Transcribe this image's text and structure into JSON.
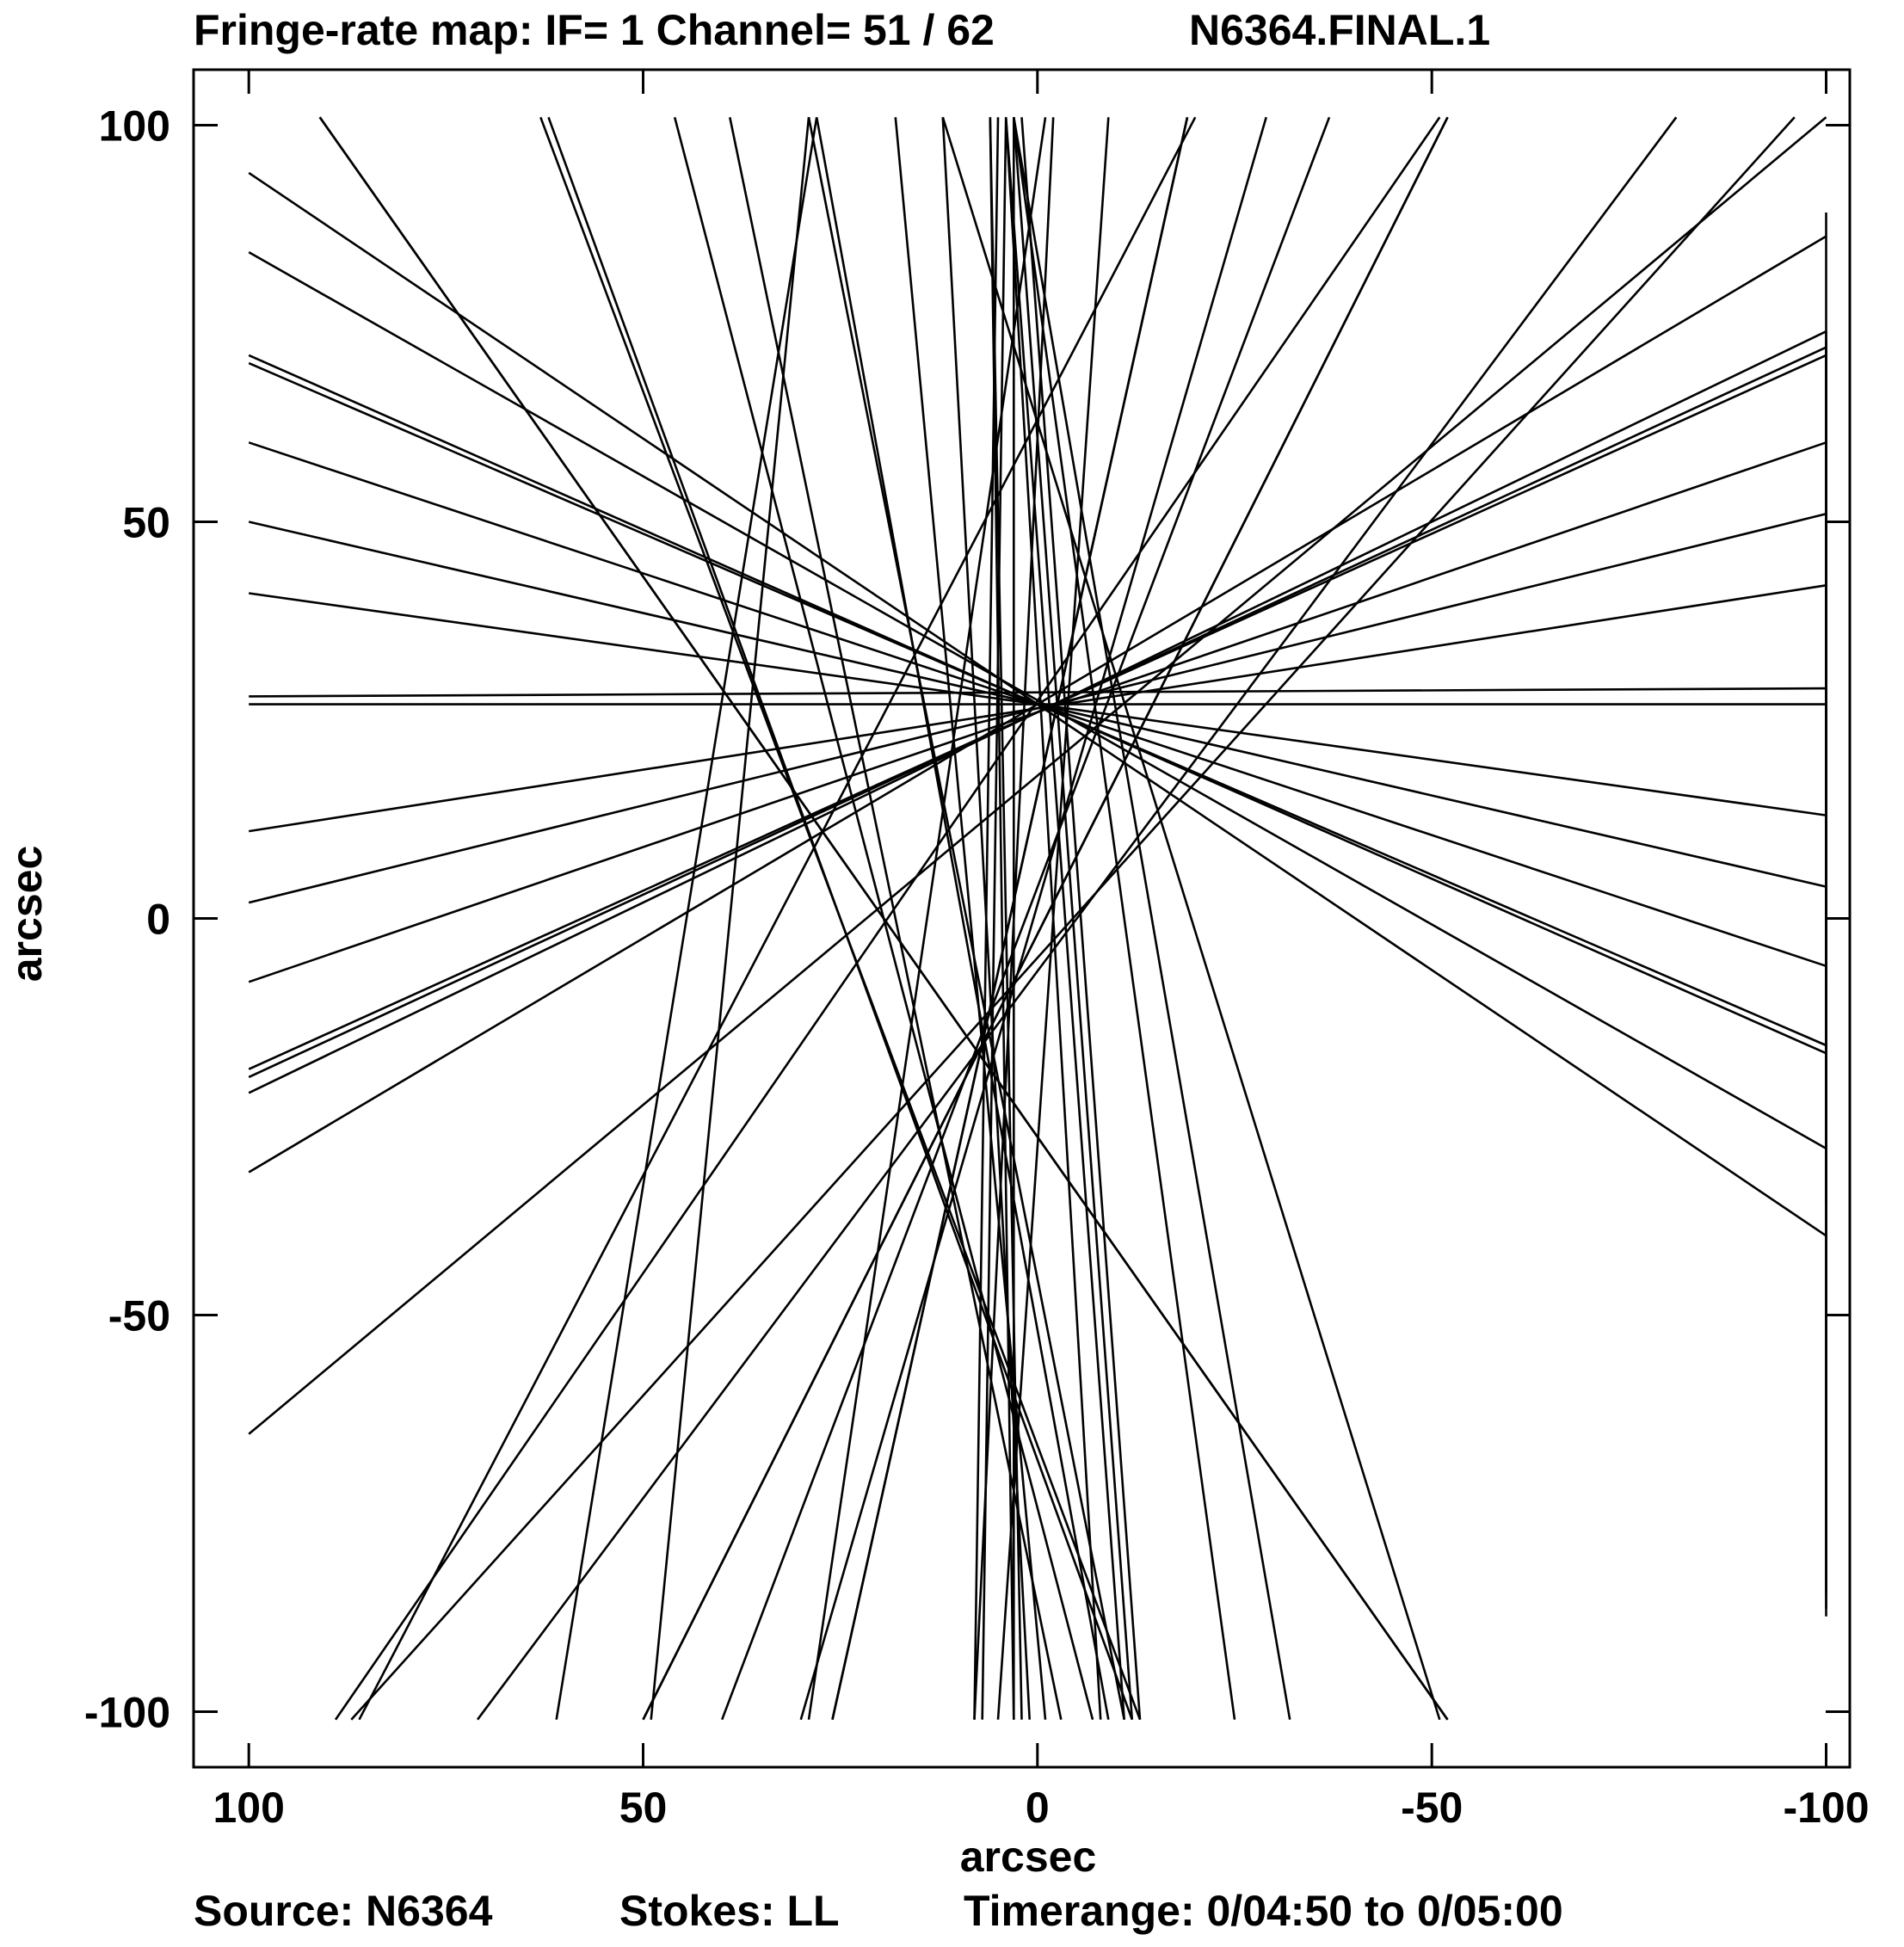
{
  "header": {
    "title": "Fringe-rate map:  IF= 1   Channel= 51 / 62",
    "image_name": "N6364.FINAL.1"
  },
  "footer": {
    "source": "Source:  N6364",
    "stokes": "Stokes:  LL",
    "timerange": "Timerange:  0/04:50  to  0/05:00"
  },
  "chart_data": {
    "type": "line",
    "xlabel": "arcsec",
    "ylabel": "arcsec",
    "xlim": [
      107,
      -103
    ],
    "ylim": [
      -107,
      107
    ],
    "x_reversed": true,
    "grid": false,
    "xticks": [
      {
        "value": 100,
        "label": "100"
      },
      {
        "value": 50,
        "label": "50"
      },
      {
        "value": 0,
        "label": "0"
      },
      {
        "value": -50,
        "label": "-50"
      },
      {
        "value": -100,
        "label": "-100"
      }
    ],
    "yticks": [
      {
        "value": 100,
        "label": "100"
      },
      {
        "value": 50,
        "label": "50"
      },
      {
        "value": 0,
        "label": "0"
      },
      {
        "value": -50,
        "label": "-50"
      },
      {
        "value": -100,
        "label": "-100"
      }
    ],
    "center": [
      0,
      27
    ],
    "lines": [
      [
        [
          100,
          94
        ],
        [
          -100,
          -40
        ]
      ],
      [
        [
          100,
          84
        ],
        [
          -100,
          -29
        ]
      ],
      [
        [
          100,
          71
        ],
        [
          -100,
          -17
        ]
      ],
      [
        [
          100,
          70
        ],
        [
          -100,
          -16
        ]
      ],
      [
        [
          100,
          60
        ],
        [
          -100,
          -6
        ]
      ],
      [
        [
          100,
          50
        ],
        [
          -100,
          4
        ]
      ],
      [
        [
          100,
          41
        ],
        [
          -100,
          13
        ]
      ],
      [
        [
          100,
          28
        ],
        [
          -100,
          29
        ]
      ],
      [
        [
          100,
          27
        ],
        [
          -100,
          27
        ]
      ],
      [
        [
          100,
          11
        ],
        [
          -100,
          42
        ]
      ],
      [
        [
          100,
          2
        ],
        [
          -100,
          51
        ]
      ],
      [
        [
          100,
          -8
        ],
        [
          -100,
          60
        ]
      ],
      [
        [
          100,
          -19
        ],
        [
          -100,
          71
        ]
      ],
      [
        [
          100,
          -20
        ],
        [
          -100,
          72
        ]
      ],
      [
        [
          100,
          -22
        ],
        [
          -100,
          74
        ]
      ],
      [
        [
          100,
          -32
        ],
        [
          -100,
          86
        ]
      ],
      [
        [
          100,
          -65
        ],
        [
          -100,
          101
        ]
      ],
      [
        [
          91,
          101
        ],
        [
          -52,
          -101
        ]
      ],
      [
        [
          91,
          101
        ],
        [
          -52,
          -101
        ]
      ],
      [
        [
          63,
          101
        ],
        [
          -13,
          -101
        ]
      ],
      [
        [
          62,
          101
        ],
        [
          -12,
          -101
        ]
      ],
      [
        [
          46,
          101
        ],
        [
          -7,
          -101
        ]
      ],
      [
        [
          39,
          101
        ],
        [
          -3,
          -101
        ]
      ],
      [
        [
          29,
          101
        ],
        [
          -11,
          -101
        ]
      ],
      [
        [
          28,
          101
        ],
        [
          -9,
          -101
        ]
      ],
      [
        [
          18,
          101
        ],
        [
          -1,
          -101
        ]
      ],
      [
        [
          12,
          101
        ],
        [
          1,
          -101
        ]
      ],
      [
        [
          6,
          101
        ],
        [
          2,
          -101
        ]
      ],
      [
        [
          5,
          101
        ],
        [
          8,
          -101
        ]
      ],
      [
        [
          4,
          101
        ],
        [
          7,
          -101
        ]
      ],
      [
        [
          3,
          101
        ],
        [
          3,
          -101
        ]
      ],
      [
        [
          -9,
          101
        ],
        [
          5,
          -101
        ]
      ],
      [
        [
          -19,
          101
        ],
        [
          26,
          -101
        ]
      ],
      [
        [
          -19,
          101
        ],
        [
          26,
          -101
        ]
      ],
      [
        [
          -29,
          101
        ],
        [
          30,
          -101
        ]
      ],
      [
        [
          -37,
          101
        ],
        [
          40,
          -101
        ]
      ],
      [
        [
          -52,
          101
        ],
        [
          50,
          -101
        ]
      ],
      [
        [
          -52,
          101
        ],
        [
          50,
          -101
        ]
      ],
      [
        [
          -81,
          101
        ],
        [
          71,
          -101
        ]
      ],
      [
        [
          -96,
          101
        ],
        [
          87,
          -101
        ]
      ],
      [
        [
          -100,
          89
        ],
        [
          -100,
          -85
        ]
      ],
      [
        [
          -100,
          74
        ],
        [
          -100,
          -88
        ]
      ],
      [
        [
          -100,
          73
        ],
        [
          -100,
          -87
        ]
      ],
      [
        [
          -100,
          52
        ],
        [
          -100,
          -36
        ]
      ],
      [
        [
          -100,
          43
        ],
        [
          -100,
          -26
        ]
      ],
      [
        [
          -100,
          72
        ],
        [
          -100,
          -8
        ]
      ],
      [
        [
          -100,
          3
        ],
        [
          -100,
          4
        ]
      ],
      [
        [
          -100,
          -16
        ],
        [
          -100,
          -17
        ]
      ],
      [
        [
          89,
          -101
        ],
        [
          -51,
          101
        ]
      ],
      [
        [
          86,
          -101
        ],
        [
          -20,
          101
        ]
      ],
      [
        [
          61,
          -101
        ],
        [
          28,
          101
        ]
      ],
      [
        [
          49,
          -101
        ],
        [
          29,
          101
        ]
      ],
      [
        [
          29,
          -101
        ],
        [
          -1,
          101
        ]
      ],
      [
        [
          8,
          -101
        ],
        [
          -2,
          101
        ]
      ],
      [
        [
          3,
          -101
        ],
        [
          6,
          101
        ]
      ],
      [
        [
          -8,
          -101
        ],
        [
          4,
          101
        ]
      ],
      [
        [
          -11,
          -101
        ],
        [
          4,
          101
        ]
      ],
      [
        [
          -12,
          -101
        ],
        [
          3,
          101
        ]
      ],
      [
        [
          -13,
          -101
        ],
        [
          2,
          101
        ]
      ],
      [
        [
          -25,
          -101
        ],
        [
          3,
          101
        ]
      ],
      [
        [
          -32,
          -101
        ],
        [
          3,
          101
        ]
      ],
      [
        [
          -51,
          -101
        ],
        [
          12,
          101
        ]
      ]
    ]
  }
}
